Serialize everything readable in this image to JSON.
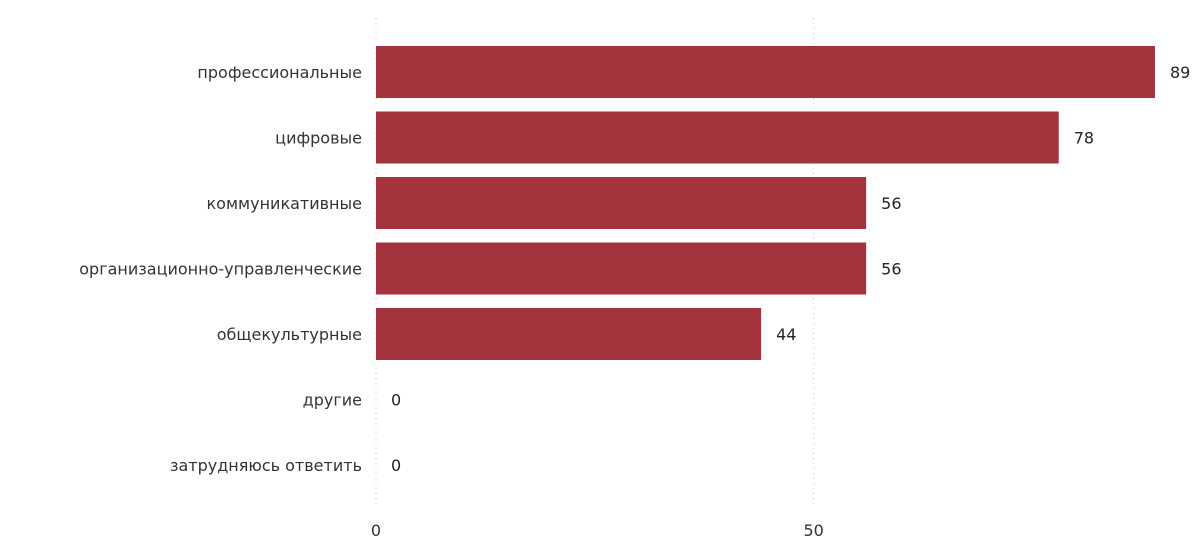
{
  "chart_data": {
    "type": "bar",
    "orientation": "horizontal",
    "title": "",
    "categories": [
      "профессиональные",
      "цифровые",
      "коммуникативные",
      "организационно-управленческие",
      "общекультурные",
      "другие",
      "затрудняюсь ответить"
    ],
    "values": [
      89,
      78,
      56,
      56,
      44,
      0,
      0
    ],
    "xlim": [
      0,
      89
    ],
    "xticks": [
      0,
      50
    ],
    "xlabel": "",
    "ylabel": "",
    "grid": "vertical-dotted",
    "bar_color": "#a3333d",
    "grid_color": "#c8c8c8"
  }
}
